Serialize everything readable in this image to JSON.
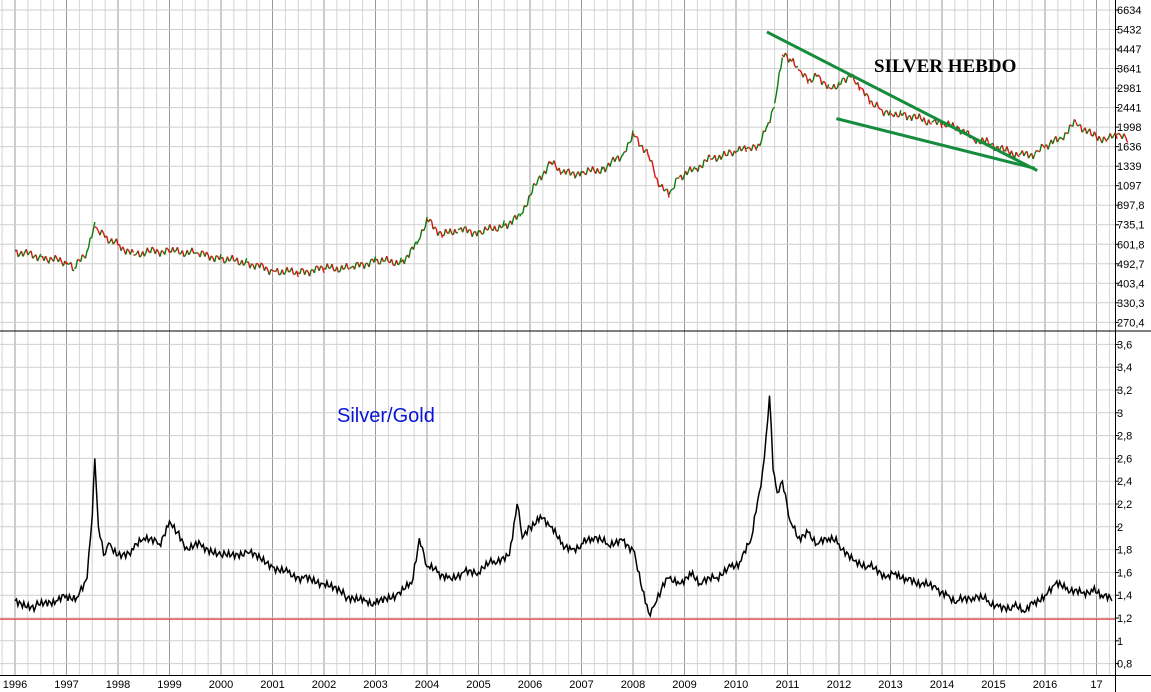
{
  "chart_data": [
    {
      "type": "line",
      "title": "SILVER HEBDO",
      "scale": "log",
      "grid": true,
      "colors": {
        "up": "#0a7a0a",
        "down": "#e01010",
        "trendline": "#148c3c"
      },
      "y_ticks": [
        "6634",
        "5432",
        "4447",
        "3641",
        "2981",
        "2441",
        "1998",
        "1636",
        "1339",
        "1097",
        "897,8",
        "735,1",
        "601,8",
        "492,7",
        "403,4",
        "330,3",
        "270,4"
      ],
      "y_tick_values": [
        6634,
        5432,
        4447,
        3641,
        2981,
        2441,
        1998,
        1636,
        1339,
        1097,
        897.8,
        735.1,
        601.8,
        492.7,
        403.4,
        330.3,
        270.4
      ],
      "series": [
        {
          "x": [
            1996.0,
            1996.5,
            1997.0,
            1997.15,
            1997.4,
            1997.55,
            1997.75,
            1998.0,
            1998.3,
            1998.6,
            1999.0,
            1999.5,
            2000.0,
            2000.5,
            2001.0,
            2001.5,
            2002.0,
            2002.5,
            2003.0,
            2003.5,
            2003.8,
            2004.0,
            2004.3,
            2004.6,
            2005.0,
            2005.5,
            2005.8,
            2006.1,
            2006.4,
            2006.6,
            2007.0,
            2007.4,
            2007.8,
            2008.0,
            2008.3,
            2008.5,
            2008.7,
            2008.9,
            2009.2,
            2009.5,
            2009.8,
            2010.0,
            2010.2,
            2010.4,
            2010.6,
            2010.75,
            2010.9,
            2011.05,
            2011.2,
            2011.4,
            2011.6,
            2011.8,
            2012.0,
            2012.2,
            2012.4,
            2012.6,
            2012.8,
            2013.0,
            2013.2,
            2013.5,
            2013.8,
            2014.0,
            2014.3,
            2014.6,
            2014.9,
            2015.2,
            2015.5,
            2015.8,
            2016.0,
            2016.3,
            2016.6,
            2016.9,
            2017.2,
            2017.4,
            2017.6
          ],
          "values": [
            560,
            530,
            500,
            470,
            560,
            720,
            650,
            600,
            540,
            560,
            560,
            550,
            520,
            500,
            460,
            450,
            470,
            470,
            510,
            500,
            600,
            780,
            660,
            700,
            680,
            730,
            800,
            1100,
            1400,
            1250,
            1250,
            1300,
            1500,
            1880,
            1500,
            1100,
            1000,
            1200,
            1300,
            1450,
            1500,
            1550,
            1600,
            1600,
            2000,
            2550,
            4200,
            4000,
            3600,
            3200,
            3400,
            3000,
            3100,
            3400,
            3000,
            2600,
            2400,
            2300,
            2300,
            2200,
            2100,
            2050,
            2000,
            1780,
            1700,
            1580,
            1500,
            1520,
            1640,
            1780,
            2100,
            1850,
            1750,
            1850,
            1750
          ]
        }
      ],
      "trendlines": [
        {
          "from": [
            2010.6,
            5300
          ],
          "to": [
            2015.85,
            1280
          ]
        },
        {
          "from": [
            2011.95,
            2180
          ],
          "to": [
            2015.8,
            1310
          ]
        }
      ]
    },
    {
      "type": "line",
      "title": "Silver/Gold",
      "grid": true,
      "y_ticks": [
        "3,6",
        "3,4",
        "3,2",
        "3",
        "2,8",
        "2,6",
        "2,4",
        "2,2",
        "2",
        "1,8",
        "1,6",
        "1,4",
        "1,2",
        "1",
        "0,8"
      ],
      "y_tick_values": [
        3.6,
        3.4,
        3.2,
        3.0,
        2.8,
        2.6,
        2.4,
        2.2,
        2.0,
        1.8,
        1.6,
        1.4,
        1.2,
        1.0,
        0.8
      ],
      "ylim": [
        0.7,
        3.7
      ],
      "reference_line": {
        "y": 1.19,
        "color": "#e01010"
      },
      "series": [
        {
          "x": [
            1996.0,
            1996.4,
            1996.8,
            1997.0,
            1997.2,
            1997.4,
            1997.5,
            1997.55,
            1997.62,
            1997.72,
            1997.85,
            1998.0,
            1998.3,
            1998.5,
            1998.8,
            1999.0,
            1999.15,
            1999.3,
            1999.6,
            2000.0,
            2000.5,
            2001.0,
            2001.3,
            2001.6,
            2002.0,
            2002.4,
            2002.8,
            2003.0,
            2003.4,
            2003.7,
            2003.85,
            2004.0,
            2004.2,
            2004.4,
            2004.7,
            2005.0,
            2005.3,
            2005.6,
            2005.75,
            2005.85,
            2006.0,
            2006.2,
            2006.4,
            2006.6,
            2006.8,
            2007.0,
            2007.2,
            2007.5,
            2007.8,
            2008.0,
            2008.15,
            2008.3,
            2008.4,
            2008.55,
            2008.7,
            2008.9,
            2009.1,
            2009.3,
            2009.6,
            2009.9,
            2010.1,
            2010.3,
            2010.45,
            2010.55,
            2010.65,
            2010.72,
            2010.8,
            2010.9,
            2011.05,
            2011.2,
            2011.4,
            2011.6,
            2011.8,
            2012.0,
            2012.3,
            2012.6,
            2012.9,
            2013.1,
            2013.3,
            2013.6,
            2013.9,
            2014.1,
            2014.3,
            2014.6,
            2014.9,
            2015.1,
            2015.4,
            2015.6,
            2015.8,
            2016.0,
            2016.2,
            2016.4,
            2016.7,
            2016.9,
            2017.1,
            2017.3
          ],
          "values": [
            1.35,
            1.3,
            1.35,
            1.4,
            1.38,
            1.55,
            2.1,
            2.6,
            2.0,
            1.75,
            1.85,
            1.75,
            1.8,
            1.9,
            1.85,
            2.05,
            1.95,
            1.8,
            1.85,
            1.75,
            1.78,
            1.65,
            1.6,
            1.55,
            1.5,
            1.4,
            1.35,
            1.32,
            1.4,
            1.5,
            1.9,
            1.65,
            1.6,
            1.55,
            1.6,
            1.6,
            1.7,
            1.75,
            2.2,
            1.9,
            2.0,
            2.1,
            2.0,
            1.85,
            1.8,
            1.85,
            1.9,
            1.85,
            1.88,
            1.8,
            1.5,
            1.25,
            1.3,
            1.45,
            1.55,
            1.5,
            1.6,
            1.5,
            1.55,
            1.65,
            1.7,
            1.9,
            2.3,
            2.6,
            3.15,
            2.5,
            2.3,
            2.4,
            2.05,
            1.9,
            1.95,
            1.85,
            1.9,
            1.85,
            1.7,
            1.65,
            1.55,
            1.6,
            1.55,
            1.5,
            1.45,
            1.4,
            1.35,
            1.38,
            1.35,
            1.3,
            1.3,
            1.25,
            1.35,
            1.4,
            1.5,
            1.45,
            1.42,
            1.45,
            1.4,
            1.35
          ]
        }
      ]
    }
  ],
  "x_axis": {
    "labels": [
      "1996",
      "1997",
      "1998",
      "1999",
      "2000",
      "2001",
      "2002",
      "2003",
      "2004",
      "2005",
      "2006",
      "2007",
      "2008",
      "2009",
      "2010",
      "2011",
      "2012",
      "2013",
      "2014",
      "2015",
      "2016",
      "17"
    ],
    "values": [
      1996,
      1997,
      1998,
      1999,
      2000,
      2001,
      2002,
      2003,
      2004,
      2005,
      2006,
      2007,
      2008,
      2009,
      2010,
      2011,
      2012,
      2013,
      2014,
      2015,
      2016,
      2017
    ]
  }
}
